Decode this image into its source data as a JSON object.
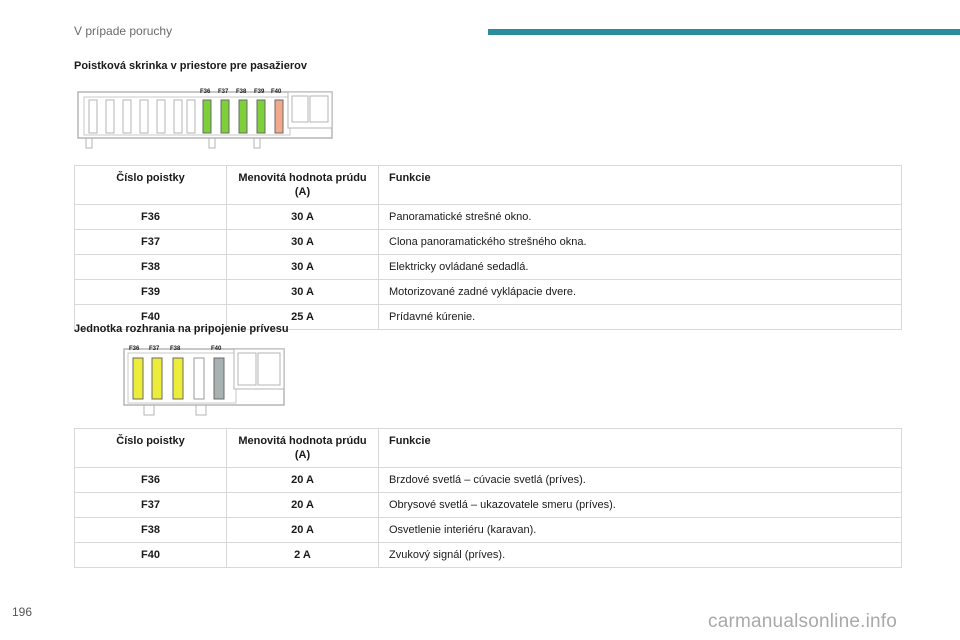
{
  "header": {
    "section_title": "V prípade poruchy"
  },
  "page_number": "196",
  "watermark": "carmanualsonline.info",
  "sections": [
    {
      "heading": "Poistková skrinka v priestore pre pasažierov",
      "diagram_labels": [
        "F36",
        "F37",
        "F38",
        "F39",
        "F40"
      ],
      "colors": {
        "green": "#7ed03a",
        "salmon": "#f2a98c"
      },
      "table": {
        "headers": [
          "Číslo poistky",
          "Menovitá hodnota prúdu (A)",
          "Funkcie"
        ],
        "rows": [
          [
            "F36",
            "30 A",
            "Panoramatické strešné okno."
          ],
          [
            "F37",
            "30 A",
            "Clona panoramatického strešného okna."
          ],
          [
            "F38",
            "30 A",
            "Elektricky ovládané sedadlá."
          ],
          [
            "F39",
            "30 A",
            "Motorizované zadné vyklápacie dvere."
          ],
          [
            "F40",
            "25 A",
            "Prídavné kúrenie."
          ]
        ]
      }
    },
    {
      "heading": "Jednotka rozhrania na pripojenie prívesu",
      "diagram_labels": [
        "F36",
        "F37",
        "F38",
        "F40"
      ],
      "colors": {
        "yellow": "#ecec3a",
        "grey": "#a9b2b2"
      },
      "table": {
        "headers": [
          "Číslo poistky",
          "Menovitá hodnota prúdu (A)",
          "Funkcie"
        ],
        "rows": [
          [
            "F36",
            "20 A",
            "Brzdové svetlá – cúvacie svetlá (príves)."
          ],
          [
            "F37",
            "20 A",
            "Obrysové svetlá – ukazovatele smeru (príves)."
          ],
          [
            "F38",
            "20 A",
            "Osvetlenie interiéru (karavan)."
          ],
          [
            "F40",
            "2 A",
            "Zvukový signál (príves)."
          ]
        ]
      }
    }
  ]
}
